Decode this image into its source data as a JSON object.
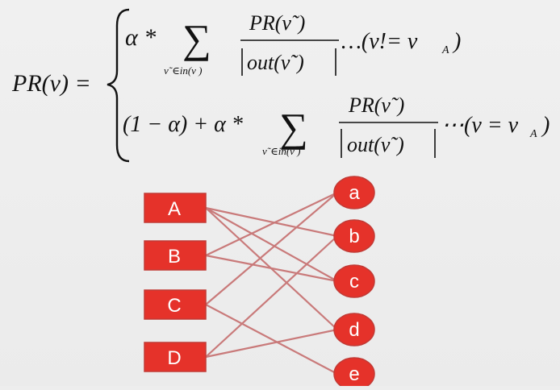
{
  "formula": {
    "lhs": "PR(v) =",
    "case1": {
      "coef": "α *",
      "sum_symbol": "∑",
      "sum_sub": "v˜∈in(v )",
      "frac_num": "PR(v˜)",
      "frac_den": "out(v˜)",
      "condition": "…(v!= v",
      "condition_sub": "A",
      "condition_close": ")"
    },
    "case2": {
      "coef": "(1 − α) + α *",
      "sum_symbol": "∑",
      "sum_sub": "v˜∈in(v )",
      "frac_num": "PR(v˜)",
      "frac_den": "out(v˜)",
      "condition": "⋯(v = v",
      "condition_sub": "A",
      "condition_close": ")"
    }
  },
  "graph": {
    "left_nodes": [
      "A",
      "B",
      "C",
      "D"
    ],
    "right_nodes": [
      "a",
      "b",
      "c",
      "d",
      "e"
    ],
    "edges": [
      [
        "A",
        "b"
      ],
      [
        "A",
        "c"
      ],
      [
        "A",
        "d"
      ],
      [
        "B",
        "a"
      ],
      [
        "B",
        "c"
      ],
      [
        "C",
        "a"
      ],
      [
        "C",
        "e"
      ],
      [
        "D",
        "b"
      ],
      [
        "D",
        "d"
      ]
    ],
    "colors": {
      "node_fill": "#e5322a",
      "node_stroke": "#c23a35",
      "edge": "#c97a7a"
    }
  }
}
